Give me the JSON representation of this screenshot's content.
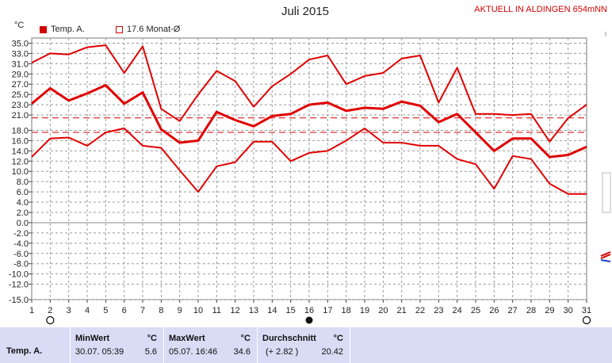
{
  "header": {
    "title": "Juli 2015",
    "status": "AKTUELL IN ALDINGEN 654mNN",
    "unit": "°C"
  },
  "legend": [
    {
      "label": "Temp. A.",
      "style": "filled",
      "color": "#d40000"
    },
    {
      "label": "17.6 Monat-Ø",
      "style": "outline",
      "color": "#d40000"
    }
  ],
  "chart_data": {
    "type": "line",
    "x": [
      1,
      2,
      3,
      4,
      5,
      6,
      7,
      8,
      9,
      10,
      11,
      12,
      13,
      14,
      15,
      16,
      17,
      18,
      19,
      20,
      21,
      22,
      23,
      24,
      25,
      26,
      27,
      28,
      29,
      30,
      31
    ],
    "xlabel": "",
    "ylabel": "°C",
    "ylim": [
      -15,
      36
    ],
    "yticks": [
      35.0,
      33.0,
      31.0,
      29.0,
      27.0,
      25.0,
      23.0,
      21.0,
      18.0,
      16.0,
      14.0,
      12.0,
      10.0,
      8.0,
      6.0,
      4.0,
      2.0,
      0.0,
      -2.0,
      -4.0,
      -6.0,
      -8.0,
      -10.0,
      -12.0,
      -15.0
    ],
    "ytick_labels": [
      "35.0",
      "33.0",
      "31.0",
      "29.0",
      "27.0",
      "25.0",
      "23.0",
      "21.0",
      "18.0",
      "16.0",
      "14.0",
      "12.0",
      "10.0",
      "8.0",
      "6.0",
      "4.0",
      "2.0",
      "0.0",
      "-2.0",
      "-4.0",
      "-6.0",
      "-8.0",
      "-10.0",
      "-12.0",
      "-15.0"
    ],
    "xtick_labels": [
      "1",
      "2",
      "3",
      "4",
      "5",
      "6",
      "7",
      "8",
      "9",
      "10",
      "11",
      "12",
      "13",
      "14",
      "15",
      "16",
      "17",
      "18",
      "19",
      "20",
      "21",
      "22",
      "23",
      "24",
      "25",
      "26",
      "27",
      "28",
      "29",
      "30",
      "31"
    ],
    "grid": true,
    "series": [
      {
        "role": "max",
        "values": [
          31.2,
          33.0,
          32.8,
          34.2,
          34.6,
          29.2,
          34.4,
          22.2,
          19.8,
          25.0,
          29.6,
          27.6,
          22.6,
          26.6,
          29.0,
          31.8,
          32.6,
          27.0,
          28.6,
          29.2,
          32.0,
          32.6,
          23.4,
          30.2,
          21.2,
          21.2,
          21.0,
          21.2,
          15.8,
          20.4,
          23.0
        ],
        "color": "#e00000",
        "width": 2
      },
      {
        "role": "mean",
        "values": [
          23.2,
          26.2,
          23.8,
          25.2,
          26.8,
          23.2,
          25.4,
          18.2,
          15.6,
          16.0,
          21.6,
          20.0,
          18.8,
          20.8,
          21.2,
          23.0,
          23.4,
          21.8,
          22.4,
          22.2,
          23.6,
          22.8,
          19.6,
          21.2,
          17.6,
          14.0,
          16.4,
          16.4,
          12.8,
          13.2,
          14.8
        ],
        "color": "#e00000",
        "width": 3
      },
      {
        "role": "min",
        "values": [
          12.8,
          16.4,
          16.6,
          15.0,
          17.6,
          18.4,
          15.0,
          14.6,
          10.2,
          6.0,
          11.0,
          11.8,
          15.8,
          15.8,
          12.0,
          13.6,
          14.0,
          16.0,
          18.4,
          15.6,
          15.6,
          15.0,
          15.0,
          12.4,
          11.4,
          6.6,
          13.0,
          12.4,
          7.6,
          5.6,
          5.6
        ],
        "color": "#e00000",
        "width": 2
      }
    ],
    "reference_lines": [
      {
        "label": "Monat-Ø",
        "value": 17.6,
        "color": "#d40000",
        "dash": true
      },
      {
        "value": 20.42,
        "color": "#d40000",
        "dash": true
      }
    ],
    "markers": [
      {
        "x": 2,
        "symbol": "open-circle"
      },
      {
        "x": 16,
        "symbol": "filled-circle"
      },
      {
        "x": 31,
        "symbol": "open-circle"
      }
    ]
  },
  "stats": {
    "row_label": "Temp. A.",
    "min": {
      "label": "MinWert",
      "unit": "°C",
      "datetime": "30.07.  05:39",
      "value": "5.6"
    },
    "max": {
      "label": "MaxWert",
      "unit": "°C",
      "datetime": "05.07.  16:46",
      "value": "34.6"
    },
    "avg": {
      "label": "Durchschnitt",
      "unit": "°C",
      "delta": "(+ 2.82 )",
      "value": "20.42"
    }
  }
}
